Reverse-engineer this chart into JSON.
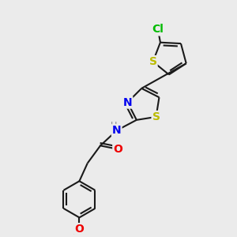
{
  "bg_color": "#ebebeb",
  "bond_color": "#1a1a1a",
  "bond_width": 1.5,
  "dbo": 0.12,
  "atoms": {
    "Cl": {
      "color": "#00bb00",
      "fontsize": 10
    },
    "S": {
      "color": "#bbbb00",
      "fontsize": 10
    },
    "N": {
      "color": "#0000ee",
      "fontsize": 10
    },
    "H": {
      "color": "#888888",
      "fontsize": 9
    },
    "O": {
      "color": "#ee0000",
      "fontsize": 10
    }
  }
}
